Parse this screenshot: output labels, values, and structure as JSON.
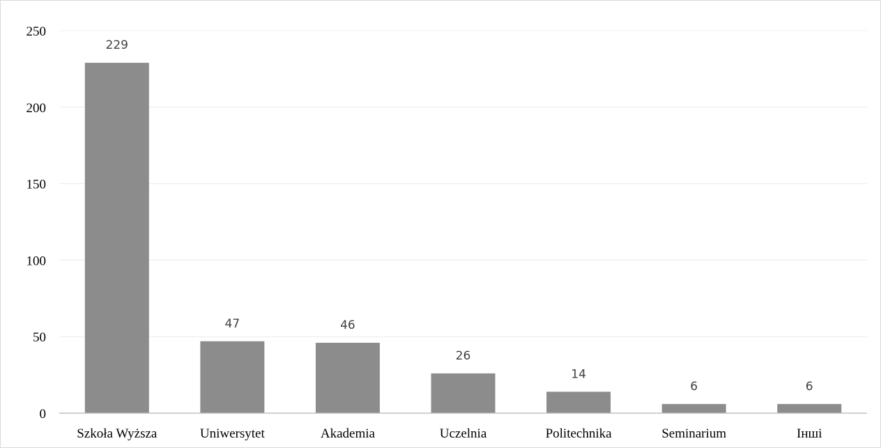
{
  "chart_data": {
    "type": "bar",
    "categories": [
      "Szkoła Wyższa",
      "Uniwersytet",
      "Akademia",
      "Uczelnia",
      "Politechnika",
      "Seminarium",
      "Інші"
    ],
    "values": [
      229,
      47,
      46,
      26,
      14,
      6,
      6
    ],
    "data_labels": [
      "229",
      "47",
      "46",
      "26",
      "14",
      "6",
      "6"
    ],
    "yticks": [
      "0",
      "50",
      "100",
      "150",
      "200",
      "250"
    ],
    "ytick_values": [
      0,
      50,
      100,
      150,
      200,
      250
    ],
    "ylim": [
      0,
      250
    ],
    "grid": true,
    "legend": "none",
    "bar_color": "#8c8c8c",
    "grid_color": "#ececec",
    "axis_color": "#bfbfbf",
    "title": "",
    "xlabel": "",
    "ylabel": ""
  }
}
